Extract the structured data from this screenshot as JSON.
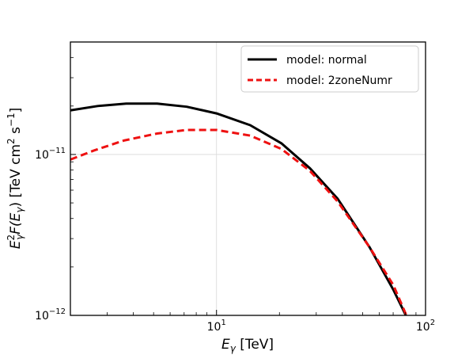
{
  "chart_data": {
    "type": "line",
    "xscale": "log",
    "yscale": "log",
    "xlim": [
      2,
      100
    ],
    "ylim": [
      1e-12,
      5e-11
    ],
    "grid": true,
    "legend_position": "top-right",
    "xlabel_main": "E",
    "xlabel_sub": "γ",
    "xlabel_unit": " [TeV]",
    "ylabel_parts": {
      "e": "E",
      "sup2": "2",
      "sub_g": "γ",
      "f": "F(",
      "e2": "E",
      "sub_g2": "γ",
      "close": ") [TeV cm",
      "sup_cm": "2",
      "s": " s",
      "sup_s": "−1",
      "end": "]"
    },
    "xticks": [
      {
        "value": 10,
        "base": "10",
        "exp": "1"
      },
      {
        "value": 100,
        "base": "10",
        "exp": "2"
      }
    ],
    "yticks": [
      {
        "value": 1e-12,
        "base": "10",
        "exp": "−12"
      },
      {
        "value": 1e-11,
        "base": "10",
        "exp": "−11"
      }
    ],
    "series": [
      {
        "name": "model: normal",
        "color": "#000000",
        "dash": "solid",
        "x": [
          2.0,
          2.7,
          3.7,
          5.2,
          7.2,
          10.0,
          14.5,
          20.5,
          28.0,
          38.0,
          54.0,
          70.0,
          80.5
        ],
        "y": [
          1.88e-11,
          2e-11,
          2.07e-11,
          2.07e-11,
          1.98e-11,
          1.8e-11,
          1.52e-11,
          1.17e-11,
          8.2e-12,
          5.3e-12,
          2.65e-12,
          1.45e-12,
          1e-12
        ]
      },
      {
        "name": "model: 2zoneNumr",
        "color": "#ee1111",
        "dash": "dashed",
        "x": [
          2.0,
          2.6,
          3.6,
          5.2,
          7.2,
          10.0,
          14.5,
          20.5,
          28.0,
          38.0,
          54.0,
          70.0,
          81.0
        ],
        "y": [
          9.3e-12,
          1.06e-11,
          1.22e-11,
          1.35e-11,
          1.42e-11,
          1.42e-11,
          1.31e-11,
          1.08e-11,
          7.9e-12,
          5.1e-12,
          2.65e-12,
          1.55e-12,
          1e-12
        ]
      }
    ]
  }
}
